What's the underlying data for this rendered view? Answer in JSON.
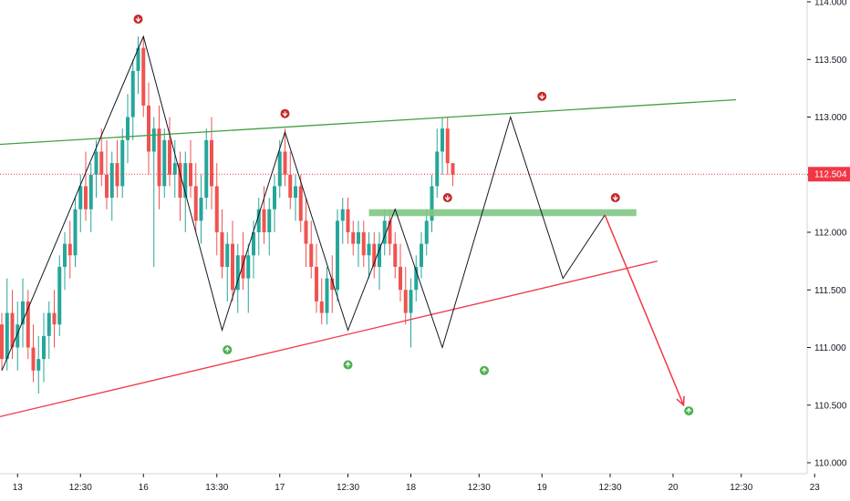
{
  "chart_data": {
    "type": "candlestick",
    "colors": {
      "up": "#26a69a",
      "down": "#ef5350",
      "zigzag": "#131722",
      "upper_trend": "#43a047",
      "lower_trend": "#f23645",
      "zone": "#81c784",
      "current_price": "#f23645",
      "marker_down": "#c62828",
      "marker_up": "#4caf50",
      "axis": "#131722",
      "border": "#d1d4dc"
    },
    "y_axis": {
      "min": 110.0,
      "max": 114.0,
      "ticks": [
        "110.000",
        "110.500",
        "111.000",
        "111.500",
        "112.000",
        "112.500",
        "113.000",
        "113.500",
        "114.000"
      ],
      "tick_values": [
        110.0,
        110.5,
        111.0,
        111.5,
        112.0,
        112.5,
        113.0,
        113.5,
        114.0
      ]
    },
    "x_axis": {
      "ticks": [
        "13",
        "12:30",
        "16",
        "13:30",
        "17",
        "12:30",
        "18",
        "12:30",
        "19",
        "12:30",
        "20",
        "12:30",
        "23"
      ],
      "tick_bars": [
        3,
        15,
        27,
        41,
        53,
        66,
        78,
        91,
        103,
        116,
        128,
        141,
        155
      ]
    },
    "current_price": {
      "value": 112.504,
      "label": "112.504"
    },
    "candles_ohlc": [
      [
        111.2,
        111.3,
        110.8,
        110.9
      ],
      [
        110.9,
        111.6,
        110.8,
        111.3
      ],
      [
        111.3,
        111.5,
        110.9,
        111.0
      ],
      [
        111.0,
        111.4,
        110.8,
        111.2
      ],
      [
        111.2,
        111.6,
        111.0,
        111.4
      ],
      [
        111.4,
        111.5,
        110.9,
        111.0
      ],
      [
        111.0,
        111.2,
        110.7,
        110.8
      ],
      [
        110.8,
        111.1,
        110.6,
        110.9
      ],
      [
        110.9,
        111.3,
        110.7,
        111.1
      ],
      [
        111.1,
        111.4,
        110.9,
        111.3
      ],
      [
        111.3,
        111.5,
        111.0,
        111.2
      ],
      [
        111.2,
        111.8,
        111.1,
        111.7
      ],
      [
        111.7,
        112.0,
        111.5,
        111.9
      ],
      [
        111.9,
        112.1,
        111.6,
        111.8
      ],
      [
        111.8,
        112.3,
        111.7,
        112.2
      ],
      [
        112.2,
        112.5,
        112.0,
        112.4
      ],
      [
        112.4,
        112.7,
        112.1,
        112.2
      ],
      [
        112.2,
        112.6,
        112.0,
        112.5
      ],
      [
        112.5,
        112.8,
        112.3,
        112.7
      ],
      [
        112.7,
        112.9,
        112.4,
        112.5
      ],
      [
        112.5,
        112.8,
        112.2,
        112.3
      ],
      [
        112.3,
        112.7,
        112.1,
        112.6
      ],
      [
        112.6,
        112.8,
        112.3,
        112.4
      ],
      [
        112.4,
        112.9,
        112.3,
        112.8
      ],
      [
        112.8,
        113.2,
        112.6,
        113.0
      ],
      [
        113.0,
        113.5,
        112.8,
        113.4
      ],
      [
        113.4,
        113.7,
        113.2,
        113.6
      ],
      [
        113.6,
        113.7,
        113.0,
        113.1
      ],
      [
        113.1,
        113.3,
        112.5,
        112.7
      ],
      [
        112.7,
        113.0,
        111.7,
        112.9
      ],
      [
        112.9,
        113.1,
        112.2,
        112.4
      ],
      [
        112.4,
        112.9,
        112.3,
        112.8
      ],
      [
        112.8,
        113.0,
        112.4,
        112.5
      ],
      [
        112.5,
        112.8,
        112.3,
        112.6
      ],
      [
        112.6,
        112.7,
        112.1,
        112.3
      ],
      [
        112.3,
        112.7,
        112.0,
        112.6
      ],
      [
        112.6,
        112.8,
        112.3,
        112.4
      ],
      [
        112.4,
        112.6,
        112.0,
        112.1
      ],
      [
        112.1,
        112.5,
        111.9,
        112.3
      ],
      [
        112.3,
        112.9,
        112.2,
        112.8
      ],
      [
        112.8,
        113.0,
        112.2,
        112.4
      ],
      [
        112.4,
        112.6,
        111.8,
        112.0
      ],
      [
        112.0,
        112.2,
        111.6,
        111.7
      ],
      [
        111.7,
        112.0,
        111.4,
        111.9
      ],
      [
        111.9,
        112.1,
        111.4,
        111.5
      ],
      [
        111.5,
        111.9,
        111.3,
        111.8
      ],
      [
        111.8,
        112.0,
        111.5,
        111.6
      ],
      [
        111.6,
        111.9,
        111.3,
        111.8
      ],
      [
        111.8,
        112.1,
        111.6,
        112.0
      ],
      [
        112.0,
        112.3,
        111.8,
        112.2
      ],
      [
        112.2,
        112.4,
        111.9,
        112.0
      ],
      [
        112.0,
        112.3,
        111.8,
        112.2
      ],
      [
        112.2,
        112.5,
        112.0,
        112.4
      ],
      [
        112.4,
        112.8,
        112.3,
        112.7
      ],
      [
        112.7,
        112.9,
        112.4,
        112.5
      ],
      [
        112.5,
        112.7,
        112.2,
        112.3
      ],
      [
        112.3,
        112.5,
        112.1,
        112.4
      ],
      [
        112.4,
        112.5,
        112.0,
        112.1
      ],
      [
        112.1,
        112.3,
        111.7,
        111.9
      ],
      [
        111.9,
        112.1,
        111.6,
        111.7
      ],
      [
        111.7,
        111.9,
        111.3,
        111.4
      ],
      [
        111.4,
        111.6,
        111.2,
        111.3
      ],
      [
        111.3,
        111.7,
        111.2,
        111.6
      ],
      [
        111.6,
        111.8,
        111.3,
        111.5
      ],
      [
        111.5,
        112.2,
        111.4,
        112.1
      ],
      [
        112.1,
        112.3,
        111.9,
        112.2
      ],
      [
        112.2,
        112.3,
        111.9,
        112.0
      ],
      [
        112.0,
        112.1,
        111.8,
        111.9
      ],
      [
        111.9,
        112.1,
        111.7,
        112.0
      ],
      [
        112.0,
        112.1,
        111.7,
        111.8
      ],
      [
        111.8,
        112.0,
        111.6,
        111.9
      ],
      [
        111.9,
        112.0,
        111.6,
        111.7
      ],
      [
        111.7,
        112.0,
        111.5,
        111.9
      ],
      [
        111.9,
        112.2,
        111.8,
        112.1
      ],
      [
        112.1,
        112.2,
        111.8,
        111.9
      ],
      [
        111.9,
        112.0,
        111.6,
        111.7
      ],
      [
        111.7,
        111.9,
        111.4,
        111.5
      ],
      [
        111.5,
        111.7,
        111.2,
        111.3
      ],
      [
        111.3,
        111.6,
        111.0,
        111.5
      ],
      [
        111.5,
        111.8,
        111.4,
        111.7
      ],
      [
        111.7,
        112.0,
        111.6,
        111.9
      ],
      [
        111.9,
        112.2,
        111.8,
        112.1
      ],
      [
        112.1,
        112.5,
        112.0,
        112.4
      ],
      [
        112.4,
        112.9,
        112.3,
        112.7
      ],
      [
        112.7,
        113.0,
        112.5,
        112.9
      ],
      [
        112.9,
        113.0,
        112.5,
        112.6
      ],
      [
        112.6,
        112.6,
        112.4,
        112.5
      ]
    ],
    "zigzag": [
      {
        "bar": 0,
        "price": 110.8
      },
      {
        "bar": 27,
        "price": 113.7
      },
      {
        "bar": 42,
        "price": 111.15
      },
      {
        "bar": 54,
        "price": 112.87
      },
      {
        "bar": 66,
        "price": 111.15
      },
      {
        "bar": 75,
        "price": 112.2
      },
      {
        "bar": 84,
        "price": 111.0
      },
      {
        "bar": 97,
        "price": 113.0
      },
      {
        "bar": 107,
        "price": 111.6
      },
      {
        "bar": 115,
        "price": 112.15
      }
    ],
    "upper_trendline": {
      "from": {
        "bar": -5,
        "price": 112.75
      },
      "to": {
        "bar": 140,
        "price": 113.15
      }
    },
    "lower_trendline": {
      "from": {
        "bar": -5,
        "price": 110.35
      },
      "to": {
        "bar": 125,
        "price": 111.75
      }
    },
    "resistance_zone": {
      "from_bar": 70,
      "to_bar": 121,
      "price_low": 112.14,
      "price_high": 112.2
    },
    "projection_arrow": {
      "from": {
        "bar": 115,
        "price": 112.15
      },
      "to": {
        "bar": 130,
        "price": 110.5
      }
    },
    "markers": [
      {
        "type": "down",
        "bar": 26,
        "price": 113.85
      },
      {
        "type": "down",
        "bar": 54,
        "price": 113.03
      },
      {
        "type": "down",
        "bar": 85,
        "price": 112.3
      },
      {
        "type": "down",
        "bar": 103,
        "price": 113.18
      },
      {
        "type": "down",
        "bar": 117,
        "price": 112.3
      },
      {
        "type": "up",
        "bar": 43,
        "price": 110.98
      },
      {
        "type": "up",
        "bar": 66,
        "price": 110.85
      },
      {
        "type": "up",
        "bar": 92,
        "price": 110.8
      },
      {
        "type": "up",
        "bar": 131,
        "price": 110.45
      }
    ]
  }
}
